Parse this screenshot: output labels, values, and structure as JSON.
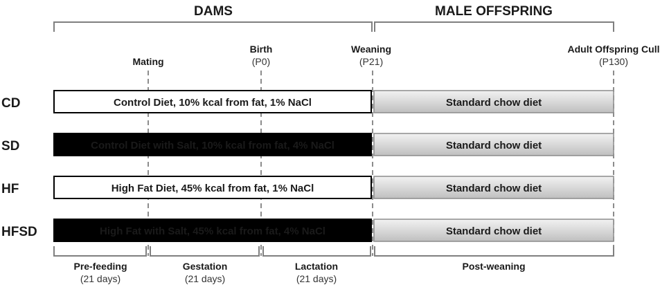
{
  "headers": {
    "dams": "DAMS",
    "offspring": "MALE OFFSPRING"
  },
  "milestones": {
    "mating": {
      "label": "Mating"
    },
    "birth": {
      "label": "Birth",
      "sub": "(P0)"
    },
    "weaning": {
      "label": "Weaning",
      "sub": "(P21)"
    },
    "cull": {
      "label": "Adult Offspring Cull",
      "sub": "(P130)"
    }
  },
  "groups": [
    {
      "label": "CD",
      "dam_diet": "Control Diet, 10% kcal from fat, 1% NaCl",
      "dam_fill": "#ffffff",
      "dam_text": "#1a1a1a",
      "offspring_diet": "Standard chow diet"
    },
    {
      "label": "SD",
      "dam_diet": "Control Diet with Salt, 10% kcal from fat, 4% NaCl",
      "dam_fill": "#000000",
      "dam_text": "#ffffff",
      "offspring_diet": "Standard chow diet"
    },
    {
      "label": "HF",
      "dam_diet": "High Fat Diet, 45% kcal from fat, 1% NaCl",
      "dam_fill": "#ffffff",
      "dam_text": "#1a1a1a",
      "offspring_diet": "Standard chow diet"
    },
    {
      "label": "HFSD",
      "dam_diet": "High Fat with Salt, 45% kcal from fat, 4% NaCl",
      "dam_fill": "#000000",
      "dam_text": "#ffffff",
      "offspring_diet": "Standard chow diet"
    }
  ],
  "phases": {
    "prefeeding": {
      "label": "Pre-feeding",
      "sub": "(21 days)"
    },
    "gestation": {
      "label": "Gestation",
      "sub": "(21 days)"
    },
    "lactation": {
      "label": "Lactation",
      "sub": "(21 days)"
    },
    "postweaning": {
      "label": "Post-weaning"
    }
  }
}
